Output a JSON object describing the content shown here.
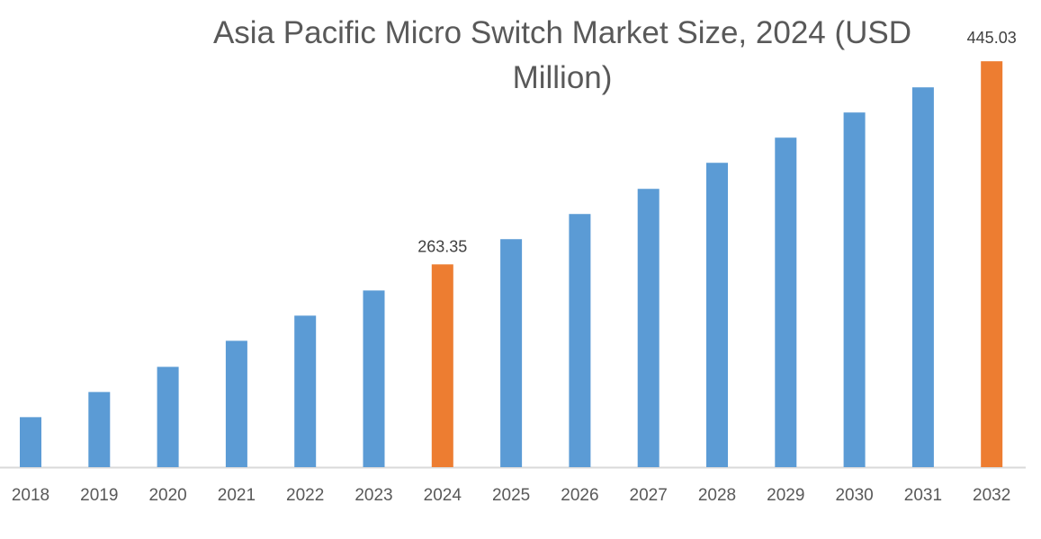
{
  "chart_data": {
    "type": "bar",
    "title": "Asia Pacific Micro Switch Market Size, 2024 (USD Million)",
    "xlabel": "",
    "ylabel": "",
    "categories": [
      "2018",
      "2019",
      "2020",
      "2021",
      "2022",
      "2023",
      "2024",
      "2025",
      "2026",
      "2027",
      "2028",
      "2029",
      "2030",
      "2031",
      "2032"
    ],
    "values": [
      126.7,
      149.2,
      171.7,
      195.0,
      217.5,
      240.0,
      263.35,
      285.9,
      308.4,
      330.9,
      354.2,
      376.7,
      399.2,
      421.7,
      445.03
    ],
    "data_labels": {
      "6": "263.35",
      "14": "445.03"
    },
    "highlighted": [
      6,
      14
    ],
    "ylim": [
      82,
      450
    ],
    "grid": false,
    "legend": "none",
    "colors": {
      "bar": "#5b9bd5",
      "highlight": "#ed7d31",
      "axis": "#d9d9d9",
      "text": "#595959"
    }
  }
}
